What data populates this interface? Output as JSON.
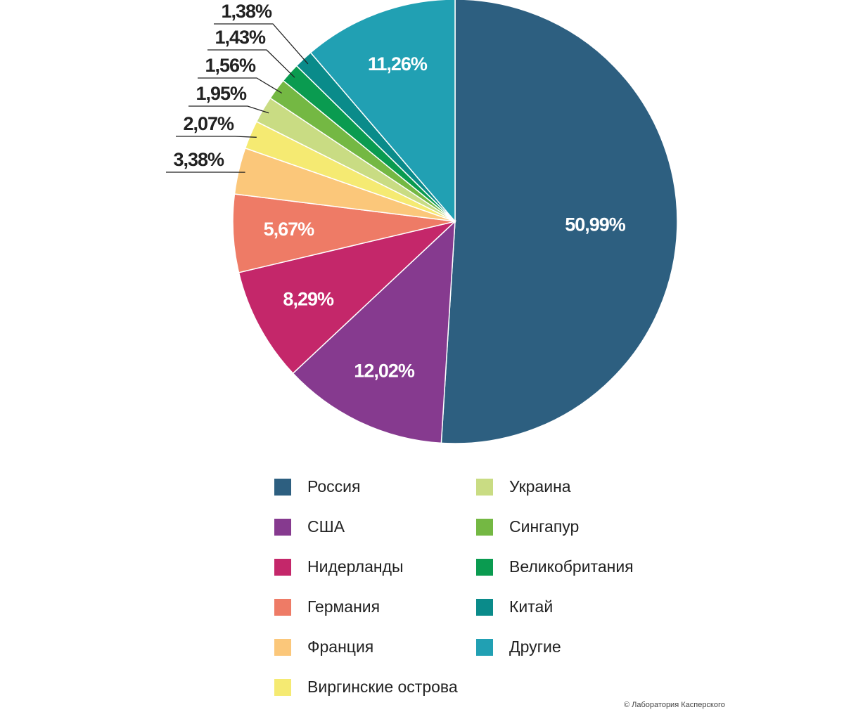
{
  "chart_data": {
    "type": "pie",
    "categories": [
      "Россия",
      "США",
      "Нидерланды",
      "Германия",
      "Франция",
      "Виргинские острова",
      "Украина",
      "Сингапур",
      "Великобритания",
      "Китай",
      "Другие"
    ],
    "values": [
      50.99,
      12.02,
      8.29,
      5.67,
      3.38,
      2.07,
      1.95,
      1.56,
      1.43,
      1.38,
      11.26
    ],
    "value_labels": [
      "50,99%",
      "12,02%",
      "8,29%",
      "5,67%",
      "3,38%",
      "2,07%",
      "1,95%",
      "1,56%",
      "1,43%",
      "1,38%",
      "11,26%"
    ],
    "colors": [
      "#2d5f80",
      "#863a8f",
      "#c4276a",
      "#ee7b66",
      "#fbc77a",
      "#f5ea72",
      "#c9dc83",
      "#74b843",
      "#0a9b50",
      "#0a8b8a",
      "#21a0b3"
    ],
    "credit": "© Лаборатория Касперского"
  }
}
